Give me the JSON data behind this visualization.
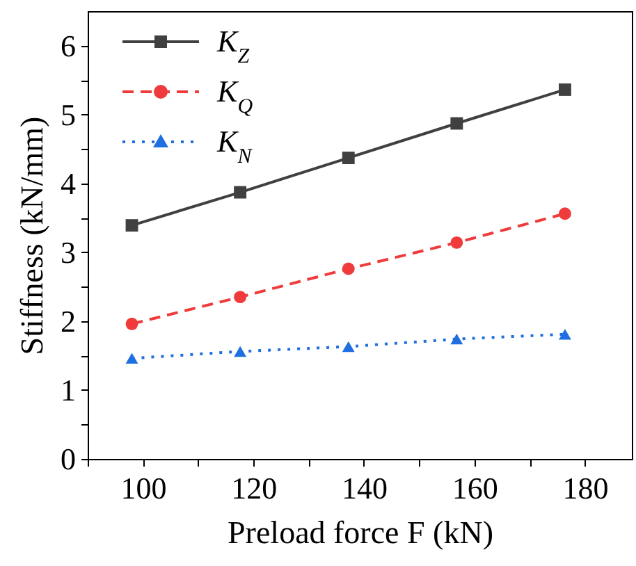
{
  "chart_data": {
    "type": "line",
    "xlabel": "Preload force F (kN)",
    "ylabel": "Stiffness (kN/mm)",
    "x": [
      98,
      117.6,
      137.2,
      156.8,
      176.4
    ],
    "series": [
      {
        "name": "K$_{Z}$",
        "color": "#404040",
        "marker": "square",
        "line_style": "solid",
        "values": [
          3.39,
          3.87,
          4.37,
          4.87,
          5.36
        ]
      },
      {
        "name": "K$_{Q}$",
        "color": "#ef3b3b",
        "marker": "circle",
        "line_style": "dashed",
        "values": [
          1.96,
          2.35,
          2.76,
          3.14,
          3.56
        ]
      },
      {
        "name": "K$_{N}$",
        "color": "#1f6fe0",
        "marker": "triangle",
        "line_style": "dotted",
        "values": [
          1.46,
          1.56,
          1.63,
          1.74,
          1.81
        ]
      }
    ],
    "xlim": [
      90,
      188.5
    ],
    "ylim": [
      0,
      6.5
    ],
    "xticks": [
      {
        "value": 90,
        "label": null
      },
      100,
      {
        "value": 110,
        "label": null
      },
      120,
      {
        "value": 130,
        "label": null
      },
      140,
      {
        "value": 150,
        "label": null
      },
      160,
      {
        "value": 170,
        "label": null
      },
      180
    ],
    "yticks": [
      0,
      {
        "value": 0.5,
        "label": null
      },
      1,
      {
        "value": 1.5,
        "label": null
      },
      2,
      {
        "value": 2.5,
        "label": null
      },
      3,
      {
        "value": 3.5,
        "label": null
      },
      4,
      {
        "value": 4.5,
        "label": null
      },
      5,
      {
        "value": 5.5,
        "label": null
      },
      6
    ],
    "grid": false,
    "legend": "top left"
  }
}
